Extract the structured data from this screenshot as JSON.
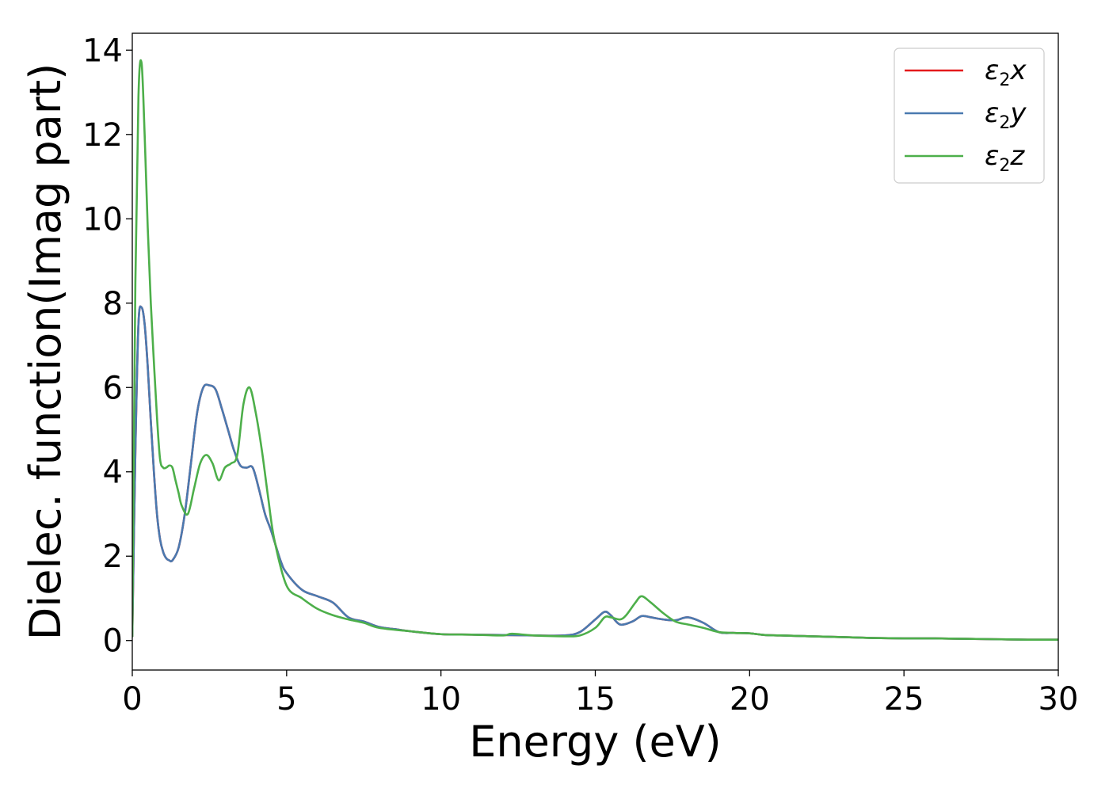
{
  "chart_data": {
    "type": "line",
    "title": "",
    "xlabel": "Energy (eV)",
    "ylabel": "Dielec. function(Imag part)",
    "xlim": [
      0,
      30
    ],
    "ylim": [
      -0.7,
      14.4
    ],
    "xticks": [
      0,
      5,
      10,
      15,
      20,
      25,
      30
    ],
    "yticks": [
      0,
      2,
      4,
      6,
      8,
      10,
      12,
      14
    ],
    "grid": false,
    "legend_position": "top-right",
    "series": [
      {
        "name": "ε₂x",
        "legend": {
          "base": "ε",
          "sub": "2",
          "tail": "x"
        },
        "color": "#e41a1c",
        "x": [
          0,
          0.1,
          0.2,
          0.3,
          0.4,
          0.5,
          0.6,
          0.7,
          0.8,
          0.9,
          1.0,
          1.1,
          1.2,
          1.3,
          1.5,
          1.7,
          1.9,
          2.1,
          2.3,
          2.5,
          2.7,
          2.9,
          3.1,
          3.3,
          3.5,
          3.7,
          3.9,
          4.1,
          4.3,
          4.5,
          4.8,
          5.0,
          5.5,
          6.0,
          6.5,
          7.0,
          7.5,
          8.0,
          8.5,
          9.0,
          10.0,
          11.0,
          12.0,
          13.0,
          14.0,
          14.5,
          15.0,
          15.3,
          15.5,
          15.8,
          16.2,
          16.5,
          16.8,
          17.2,
          17.6,
          18.0,
          18.5,
          19.0,
          19.5,
          20.0,
          20.5,
          21.0,
          22.0,
          23.0,
          24.0,
          25.0,
          26.0,
          27.0,
          28.0,
          29.0,
          30.0
        ],
        "y": [
          0.1,
          4.5,
          7.5,
          7.9,
          7.5,
          6.5,
          5.2,
          4.0,
          3.0,
          2.4,
          2.1,
          1.95,
          1.9,
          1.9,
          2.2,
          3.0,
          4.2,
          5.4,
          6.0,
          6.05,
          5.95,
          5.5,
          5.0,
          4.5,
          4.15,
          4.1,
          4.1,
          3.6,
          3.0,
          2.6,
          1.9,
          1.6,
          1.2,
          1.05,
          0.9,
          0.55,
          0.45,
          0.32,
          0.27,
          0.22,
          0.15,
          0.14,
          0.13,
          0.12,
          0.12,
          0.2,
          0.5,
          0.68,
          0.6,
          0.38,
          0.45,
          0.58,
          0.55,
          0.5,
          0.48,
          0.55,
          0.42,
          0.2,
          0.18,
          0.17,
          0.13,
          0.12,
          0.1,
          0.08,
          0.06,
          0.05,
          0.05,
          0.04,
          0.03,
          0.02,
          0.02
        ]
      },
      {
        "name": "ε₂y",
        "legend": {
          "base": "ε",
          "sub": "2",
          "tail": "y"
        },
        "color": "#4a7ab0",
        "x": [
          0,
          0.1,
          0.2,
          0.3,
          0.4,
          0.5,
          0.6,
          0.7,
          0.8,
          0.9,
          1.0,
          1.1,
          1.2,
          1.3,
          1.5,
          1.7,
          1.9,
          2.1,
          2.3,
          2.5,
          2.7,
          2.9,
          3.1,
          3.3,
          3.5,
          3.7,
          3.9,
          4.1,
          4.3,
          4.5,
          4.8,
          5.0,
          5.5,
          6.0,
          6.5,
          7.0,
          7.5,
          8.0,
          8.5,
          9.0,
          10.0,
          11.0,
          12.0,
          13.0,
          14.0,
          14.5,
          15.0,
          15.3,
          15.5,
          15.8,
          16.2,
          16.5,
          16.8,
          17.2,
          17.6,
          18.0,
          18.5,
          19.0,
          19.5,
          20.0,
          20.5,
          21.0,
          22.0,
          23.0,
          24.0,
          25.0,
          26.0,
          27.0,
          28.0,
          29.0,
          30.0
        ],
        "y": [
          0.1,
          4.5,
          7.5,
          7.9,
          7.5,
          6.5,
          5.2,
          4.0,
          3.0,
          2.4,
          2.1,
          1.95,
          1.9,
          1.9,
          2.2,
          3.0,
          4.2,
          5.4,
          6.0,
          6.05,
          5.95,
          5.5,
          5.0,
          4.5,
          4.15,
          4.1,
          4.1,
          3.6,
          3.0,
          2.6,
          1.9,
          1.6,
          1.2,
          1.05,
          0.9,
          0.55,
          0.45,
          0.32,
          0.27,
          0.22,
          0.15,
          0.14,
          0.13,
          0.12,
          0.12,
          0.2,
          0.5,
          0.68,
          0.6,
          0.38,
          0.45,
          0.58,
          0.55,
          0.5,
          0.48,
          0.55,
          0.42,
          0.2,
          0.18,
          0.17,
          0.13,
          0.12,
          0.1,
          0.08,
          0.06,
          0.05,
          0.05,
          0.04,
          0.03,
          0.02,
          0.02
        ]
      },
      {
        "name": "ε₂z",
        "legend": {
          "base": "ε",
          "sub": "2",
          "tail": "z"
        },
        "color": "#4daf4a",
        "x": [
          0,
          0.1,
          0.2,
          0.3,
          0.4,
          0.5,
          0.6,
          0.7,
          0.8,
          0.9,
          1.0,
          1.1,
          1.2,
          1.3,
          1.4,
          1.5,
          1.6,
          1.8,
          2.0,
          2.2,
          2.4,
          2.6,
          2.8,
          3.0,
          3.2,
          3.4,
          3.6,
          3.8,
          4.0,
          4.2,
          4.4,
          4.6,
          5.0,
          5.5,
          6.0,
          6.5,
          7.0,
          7.5,
          8.0,
          9.0,
          10.0,
          11.0,
          12.0,
          12.3,
          13.0,
          14.0,
          14.5,
          15.0,
          15.3,
          15.5,
          15.8,
          16.0,
          16.3,
          16.5,
          16.8,
          17.2,
          17.6,
          18.0,
          18.5,
          19.0,
          19.5,
          20.0,
          20.5,
          21.0,
          22.0,
          23.0,
          24.0,
          25.0,
          26.0,
          27.0,
          28.0,
          29.0,
          30.0
        ],
        "y": [
          0.1,
          8.5,
          12.9,
          13.7,
          12.0,
          9.8,
          8.0,
          6.6,
          5.3,
          4.3,
          4.1,
          4.1,
          4.15,
          4.1,
          3.8,
          3.5,
          3.2,
          3.0,
          3.6,
          4.2,
          4.4,
          4.2,
          3.8,
          4.1,
          4.2,
          4.4,
          5.6,
          6.0,
          5.4,
          4.5,
          3.4,
          2.4,
          1.3,
          1.0,
          0.75,
          0.6,
          0.5,
          0.42,
          0.3,
          0.22,
          0.15,
          0.14,
          0.12,
          0.16,
          0.12,
          0.1,
          0.12,
          0.3,
          0.55,
          0.55,
          0.5,
          0.6,
          0.9,
          1.05,
          0.9,
          0.65,
          0.45,
          0.38,
          0.3,
          0.2,
          0.18,
          0.17,
          0.13,
          0.12,
          0.1,
          0.08,
          0.06,
          0.05,
          0.05,
          0.04,
          0.03,
          0.02,
          0.02
        ]
      }
    ]
  }
}
